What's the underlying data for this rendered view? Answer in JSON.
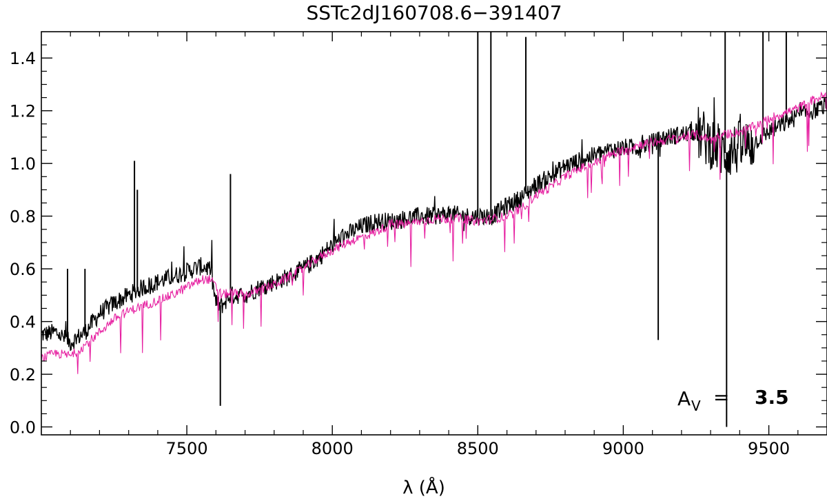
{
  "chart_data": {
    "type": "line",
    "title": "SSTc2dJ160708.6−391407",
    "xlabel": "λ (Å)",
    "ylabel": "",
    "xlim": [
      7000,
      9700
    ],
    "ylim": [
      -0.03,
      1.5
    ],
    "x_ticks": [
      7500,
      8000,
      8500,
      9000,
      9500
    ],
    "x_tick_labels": [
      "7500",
      "8000",
      "8500",
      "9000",
      "9500"
    ],
    "y_ticks": [
      0.0,
      0.2,
      0.4,
      0.6,
      0.8,
      1.0,
      1.2,
      1.4
    ],
    "y_tick_labels": [
      "0.0",
      "0.2",
      "0.4",
      "0.6",
      "0.8",
      "1.0",
      "1.2",
      "1.4"
    ],
    "grid": false,
    "annotation": {
      "symbol": "A",
      "subscript": "V",
      "equals": "=",
      "value": "3.5"
    },
    "series": [
      {
        "color": "#000000",
        "x": [
          7000,
          7050,
          7100,
          7150,
          7200,
          7250,
          7300,
          7350,
          7400,
          7450,
          7500,
          7550,
          7580,
          7600,
          7620,
          7650,
          7700,
          7750,
          7800,
          7850,
          7900,
          7950,
          8000,
          8050,
          8100,
          8150,
          8200,
          8250,
          8300,
          8350,
          8400,
          8450,
          8500,
          8550,
          8600,
          8650,
          8700,
          8750,
          8800,
          8850,
          8900,
          8950,
          9000,
          9050,
          9100,
          9150,
          9200,
          9250,
          9300,
          9350,
          9400,
          9450,
          9500,
          9550,
          9600,
          9650,
          9700
        ],
        "y": [
          0.35,
          0.36,
          0.32,
          0.36,
          0.43,
          0.47,
          0.5,
          0.53,
          0.55,
          0.57,
          0.59,
          0.61,
          0.6,
          0.47,
          0.46,
          0.5,
          0.5,
          0.53,
          0.55,
          0.57,
          0.6,
          0.64,
          0.69,
          0.73,
          0.76,
          0.78,
          0.78,
          0.79,
          0.8,
          0.8,
          0.81,
          0.8,
          0.8,
          0.8,
          0.84,
          0.87,
          0.92,
          0.95,
          0.99,
          1.01,
          1.03,
          1.05,
          1.06,
          1.06,
          1.08,
          1.1,
          1.11,
          1.12,
          1.08,
          1.04,
          1.06,
          1.08,
          1.12,
          1.15,
          1.18,
          1.2,
          1.22
        ],
        "spikes": [
          [
            7320,
            1.01
          ],
          [
            7330,
            0.9
          ],
          [
            7650,
            0.96
          ],
          [
            7615,
            0.08
          ],
          [
            8500,
            1.5
          ],
          [
            8545,
            1.5
          ],
          [
            8665,
            1.48
          ],
          [
            9120,
            0.33
          ],
          [
            9350,
            1.5
          ],
          [
            9355,
            0.0
          ],
          [
            9480,
            1.5
          ],
          [
            9560,
            1.5
          ],
          [
            7090,
            0.6
          ],
          [
            7150,
            0.6
          ]
        ]
      },
      {
        "color": "#e61ea0",
        "x": [
          7000,
          7050,
          7100,
          7150,
          7200,
          7250,
          7300,
          7350,
          7400,
          7450,
          7500,
          7550,
          7580,
          7600,
          7620,
          7650,
          7700,
          7750,
          7800,
          7850,
          7900,
          7950,
          8000,
          8050,
          8100,
          8150,
          8200,
          8250,
          8300,
          8350,
          8400,
          8450,
          8500,
          8550,
          8600,
          8650,
          8700,
          8750,
          8800,
          8850,
          8900,
          8950,
          9000,
          9050,
          9100,
          9150,
          9200,
          9250,
          9300,
          9350,
          9400,
          9450,
          9500,
          9550,
          9600,
          9650,
          9700
        ],
        "y": [
          0.26,
          0.28,
          0.27,
          0.31,
          0.36,
          0.41,
          0.44,
          0.46,
          0.48,
          0.5,
          0.53,
          0.56,
          0.56,
          0.53,
          0.5,
          0.51,
          0.5,
          0.52,
          0.54,
          0.57,
          0.6,
          0.64,
          0.67,
          0.7,
          0.72,
          0.74,
          0.77,
          0.77,
          0.78,
          0.79,
          0.79,
          0.79,
          0.78,
          0.79,
          0.8,
          0.83,
          0.88,
          0.91,
          0.95,
          0.98,
          1.0,
          1.03,
          1.05,
          1.07,
          1.08,
          1.09,
          1.1,
          1.11,
          1.09,
          1.11,
          1.12,
          1.14,
          1.17,
          1.19,
          1.21,
          1.24,
          1.26
        ]
      }
    ]
  }
}
